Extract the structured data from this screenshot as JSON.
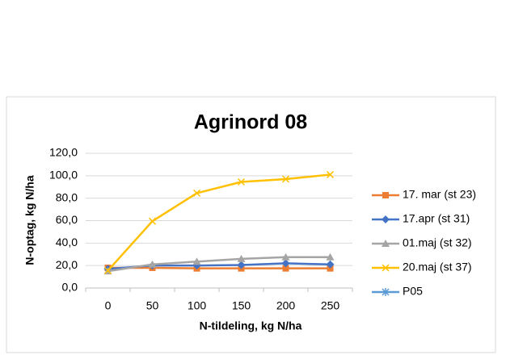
{
  "chart_data": {
    "type": "line",
    "title": "Agrinord 08",
    "x_label": "N-tildeling, kg N/ha",
    "y_label": "N-optag, kg N/ha",
    "categories": [
      "0",
      "50",
      "100",
      "150",
      "200",
      "250"
    ],
    "ylim": [
      0,
      120
    ],
    "yticks": [
      {
        "value": 0,
        "label": "0,0"
      },
      {
        "value": 20,
        "label": "20,0"
      },
      {
        "value": 40,
        "label": "40,0"
      },
      {
        "value": 60,
        "label": "60,0"
      },
      {
        "value": 80,
        "label": "80,0"
      },
      {
        "value": 100,
        "label": "100,0"
      },
      {
        "value": 120,
        "label": "120,0"
      }
    ],
    "grid": true,
    "legend": "right",
    "series": [
      {
        "name": "17. mar (st 23)",
        "color": "#ED7D31",
        "marker": "square",
        "values": [
          18,
          18,
          17.5,
          17.5,
          17.5,
          17.5
        ]
      },
      {
        "name": "17.apr (st 31)",
        "color": "#4472C4",
        "marker": "diamond",
        "values": [
          17,
          20,
          20,
          20.5,
          22,
          21
        ]
      },
      {
        "name": "01.maj (st 32)",
        "color": "#A5A5A5",
        "marker": "triangle",
        "values": [
          15,
          21,
          23.5,
          26,
          27.5,
          27.5
        ]
      },
      {
        "name": "20.maj (st 37)",
        "color": "#FFC000",
        "marker": "x",
        "values": [
          15.5,
          59.5,
          84.5,
          94.5,
          97,
          101
        ]
      },
      {
        "name": "P05",
        "color": "#5B9BD5",
        "marker": "star",
        "values": [
          null,
          null,
          null,
          null,
          null,
          null
        ]
      }
    ]
  }
}
